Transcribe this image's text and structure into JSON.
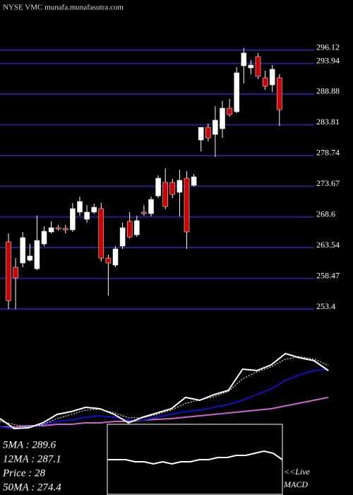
{
  "chart_data": [
    {
      "type": "candlestick",
      "title": "NYSE VMC munafa.munafasutra.com",
      "open": [
        264.49,
        260.29,
        260.99,
        261.45,
        260.05,
        264.14,
        266.12,
        266.82,
        266.7,
        266.47,
        269.39,
        268.22,
        269.39,
        269.97,
        261.8,
        260.64,
        263.79,
        267.87,
        265.65,
        269.39,
        269.15,
        272.07,
        274.29,
        274.29,
        272.66,
        274.99,
        273.82,
        281.29,
        283.39,
        282.22,
        283.16,
        286.54,
        285.96,
        293.54,
        293.19,
        295.06,
        291.56,
        290.39,
        291.56
      ],
      "high": [
        265.89,
        261.8,
        266.12,
        264.14,
        268.8,
        267.05,
        267.87,
        267.29,
        267.29,
        270.91,
        271.96,
        270.55,
        270.79,
        270.91,
        262.39,
        263.79,
        267.64,
        269.39,
        268.8,
        270.55,
        271.96,
        275.46,
        276.62,
        274.87,
        276.39,
        276.16,
        275.69,
        283.39,
        283.98,
        286.89,
        287.71,
        288.06,
        293.31,
        296.46,
        294.48,
        295.65,
        292.73,
        293.66,
        292.14
      ],
      "low": [
        253.4,
        253.4,
        260.29,
        261.22,
        259.82,
        263.79,
        265.89,
        266.35,
        265.89,
        266.12,
        268.8,
        267.64,
        269.15,
        261.22,
        255.62,
        260.29,
        263.32,
        265.07,
        265.3,
        268.8,
        268.69,
        271.72,
        269.85,
        271.72,
        268.69,
        263.32,
        273.59,
        279.42,
        281.06,
        278.49,
        281.64,
        285.14,
        285.73,
        290.63,
        292.14,
        291.33,
        289.58,
        289.23,
        283.62
      ],
      "close": [
        254.8,
        258.53,
        265.19,
        262.15,
        264.72,
        266.24,
        266.82,
        266.59,
        266.47,
        269.97,
        271.14,
        269.39,
        270.2,
        261.8,
        260.99,
        263.32,
        266.82,
        265.3,
        267.99,
        269.15,
        271.49,
        274.99,
        270.32,
        272.31,
        274.64,
        266.12,
        275.22,
        283.39,
        281.64,
        284.56,
        286.54,
        285.49,
        292.38,
        295.65,
        293.66,
        291.79,
        290.16,
        292.96,
        286.31
      ],
      "up_color": "#ffffff",
      "down_color": "#cc0000",
      "ylim": [
        252.47,
        299.73
      ],
      "yticks": [
        296.12,
        293.94,
        288.88,
        283.81,
        278.74,
        273.67,
        268.6,
        263.54,
        258.47,
        253.4
      ],
      "grid": true,
      "grid_color": "#22228c"
    },
    {
      "type": "line",
      "annotations": [
        "5MA : 289.6",
        "12MA : 287.1",
        "Price : 28",
        "50MA : 274.4"
      ],
      "ylim": [
        0,
        100
      ],
      "series": [
        {
          "color": "#cc66cc",
          "values": [
            5,
            5,
            6.7,
            6.7,
            8.3,
            8.3,
            10,
            10,
            11.7,
            11.7,
            13.3,
            14.2,
            15,
            16.7,
            18.3,
            20,
            21.7,
            23.3,
            25,
            26.7,
            30,
            33.3,
            36.7,
            40
          ]
        },
        {
          "color": "#1010c8",
          "values": [
            5,
            3.3,
            5,
            8.3,
            11.7,
            13.3,
            16.7,
            18.3,
            16.7,
            13.3,
            13.3,
            16.7,
            20,
            23.3,
            25,
            28.3,
            31.7,
            36.7,
            43.3,
            50,
            60,
            66.7,
            71.7,
            73.3
          ]
        },
        {
          "color": "#ffffff",
          "dashed": true,
          "values": [
            12,
            8,
            5,
            8,
            15,
            20,
            25,
            26,
            22,
            16,
            16,
            20,
            25,
            33,
            37,
            41,
            47,
            62,
            70,
            76,
            85,
            88,
            85,
            78
          ]
        },
        {
          "color": "#ffffff",
          "values": [
            15,
            3.3,
            4.2,
            10,
            20,
            23.3,
            28.3,
            26.7,
            20,
            10,
            16.7,
            21.7,
            26.7,
            40,
            36.7,
            43.3,
            48.3,
            73.3,
            71.7,
            78.3,
            91.7,
            86.7,
            83.3,
            71.7
          ]
        }
      ]
    },
    {
      "type": "line",
      "annotations": [
        "<<Live",
        "MACD"
      ],
      "ylim": [
        -10,
        10
      ],
      "series": [
        {
          "color": "#ffffff",
          "values": [
            0,
            0,
            0,
            -1,
            -1,
            -2,
            -1,
            -2,
            -1,
            -1,
            0,
            0,
            1,
            1,
            2,
            2,
            3,
            4,
            3,
            0
          ]
        }
      ]
    }
  ]
}
